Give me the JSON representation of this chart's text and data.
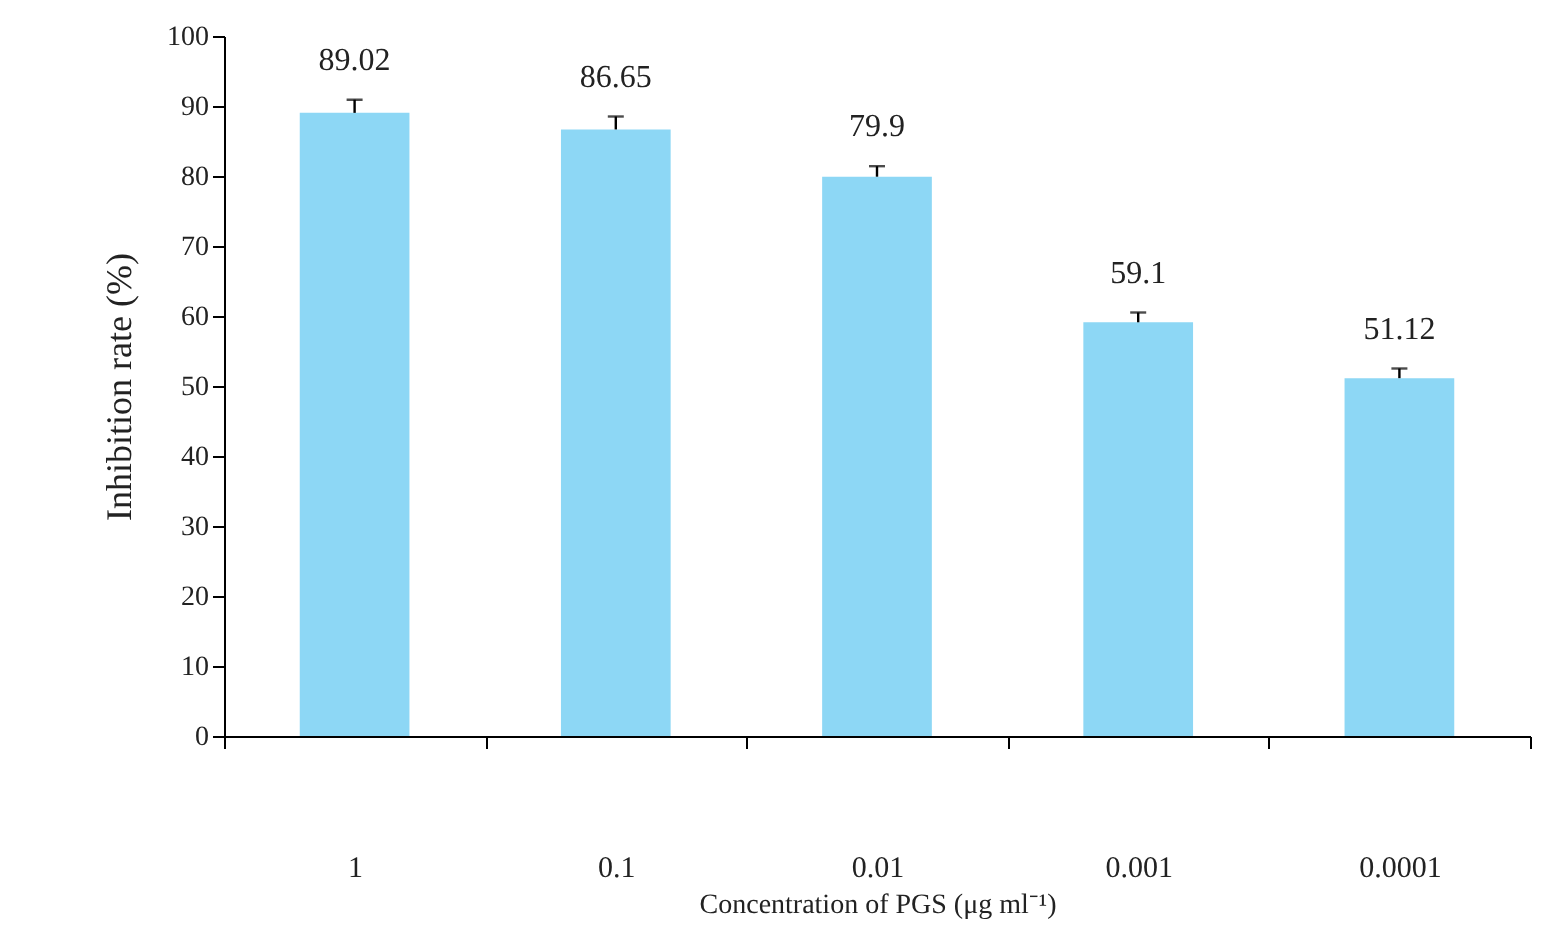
{
  "chart_data": {
    "type": "bar",
    "xlabel": "Concentration of PGS (μg ml⁻¹)",
    "ylabel": "Inhibition rate (%)",
    "categories": [
      "1",
      "0.1",
      "0.01",
      "0.001",
      "0.0001"
    ],
    "values": [
      89.02,
      86.65,
      79.9,
      59.1,
      51.12
    ],
    "errors": [
      [
        89.02,
        90.9
      ],
      [
        86.65,
        88.5
      ],
      [
        79.9,
        81.4
      ],
      [
        59.1,
        60.5
      ],
      [
        51.12,
        52.5
      ]
    ],
    "color": "#8dd7f5",
    "data_labels": true,
    "ylim": [
      0,
      100
    ],
    "yticks": [
      0,
      10,
      20,
      30,
      40,
      50,
      60,
      70,
      80,
      90,
      100
    ],
    "grid": false
  }
}
